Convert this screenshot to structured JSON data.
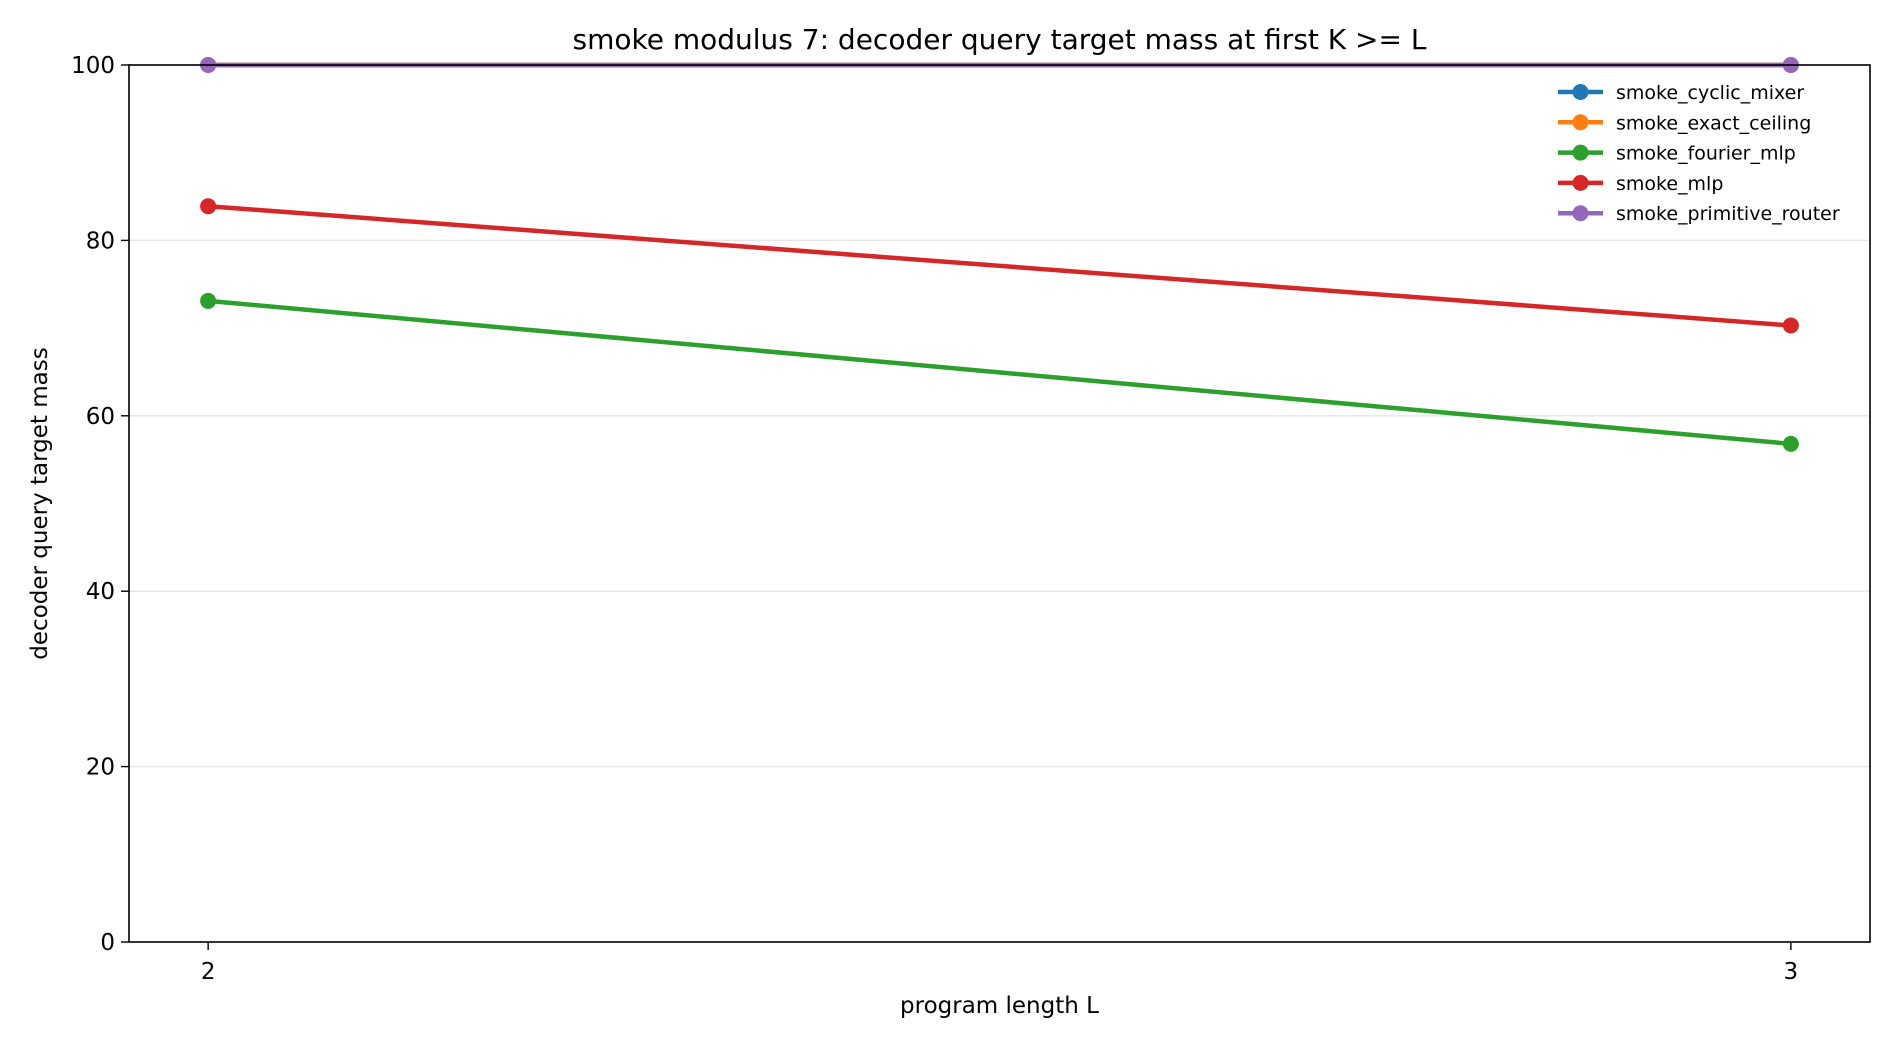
{
  "chart_data": {
    "type": "line",
    "title": "smoke modulus 7: decoder query target mass at first K >= L",
    "xlabel": "program length L",
    "ylabel": "decoder query target mass",
    "x": [
      2,
      3
    ],
    "xticks": [
      "2",
      "3"
    ],
    "xlim": [
      1.95,
      3.05
    ],
    "ylim": [
      0,
      100
    ],
    "yticks": [
      "0",
      "20",
      "40",
      "60",
      "80",
      "100"
    ],
    "grid": "horizontal",
    "legend_position": "top-right",
    "series": [
      {
        "name": "smoke_cyclic_mixer",
        "color": "#1f77b4",
        "values": [
          100,
          100
        ]
      },
      {
        "name": "smoke_exact_ceiling",
        "color": "#ff7f0e",
        "values": [
          100,
          100
        ]
      },
      {
        "name": "smoke_fourier_mlp",
        "color": "#2ca02c",
        "values": [
          73.1,
          56.8
        ]
      },
      {
        "name": "smoke_mlp",
        "color": "#d62728",
        "values": [
          83.9,
          70.3
        ]
      },
      {
        "name": "smoke_primitive_router",
        "color": "#9467bd",
        "values": [
          100,
          100
        ]
      }
    ]
  }
}
